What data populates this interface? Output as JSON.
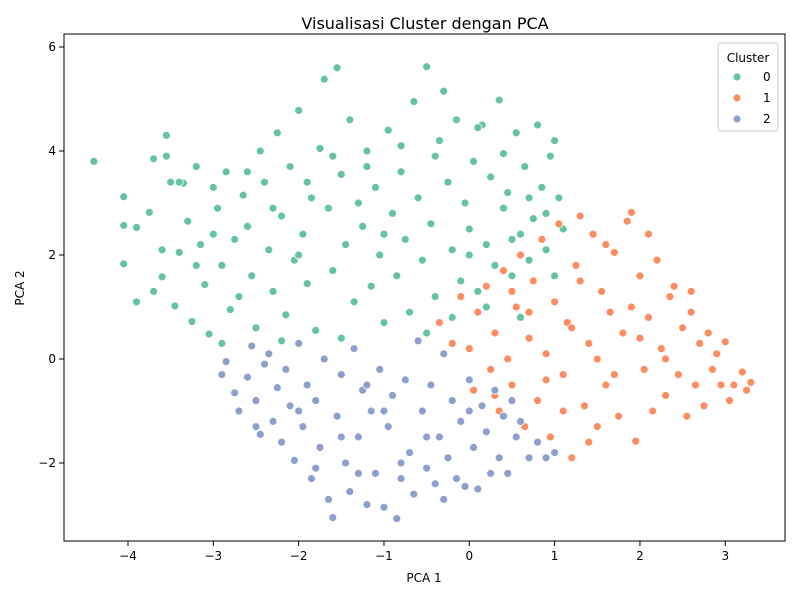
{
  "chart_data": {
    "type": "scatter",
    "title": "Visualisasi Cluster dengan PCA",
    "xlabel": "PCA 1",
    "ylabel": "PCA 2",
    "xlim": [
      -4.75,
      3.7
    ],
    "ylim": [
      -3.5,
      6.25
    ],
    "xticks": [
      -4,
      -3,
      -2,
      -1,
      0,
      1,
      2,
      3
    ],
    "yticks": [
      -2,
      0,
      2,
      4,
      6
    ],
    "xtick_labels": [
      "−4",
      "−3",
      "−2",
      "−1",
      "0",
      "1",
      "2",
      "3"
    ],
    "ytick_labels": [
      "−2",
      "0",
      "2",
      "4",
      "6"
    ],
    "grid": false,
    "legend": {
      "title": "Cluster",
      "placement": "top-right",
      "entries": [
        {
          "label": "0",
          "color": "#66c2a5"
        },
        {
          "label": "1",
          "color": "#fc8d62"
        },
        {
          "label": "2",
          "color": "#8da0cb"
        }
      ]
    },
    "series": [
      {
        "name": "0",
        "color": "#66c2a5",
        "description_of_extent": "x roughly -4.4 to 1.1, y roughly 0.2 to 5.6",
        "points": [
          [
            -4.4,
            3.8
          ],
          [
            -4.05,
            3.12
          ],
          [
            -4.05,
            2.57
          ],
          [
            -4.05,
            1.83
          ],
          [
            -3.9,
            2.53
          ],
          [
            -3.9,
            1.1
          ],
          [
            -3.75,
            2.82
          ],
          [
            -3.7,
            3.85
          ],
          [
            -3.7,
            1.3
          ],
          [
            -3.6,
            1.58
          ],
          [
            -3.55,
            4.3
          ],
          [
            -3.55,
            3.9
          ],
          [
            -3.5,
            3.4
          ],
          [
            -3.45,
            1.02
          ],
          [
            -3.4,
            2.05
          ],
          [
            -3.35,
            3.38
          ],
          [
            -3.3,
            2.65
          ],
          [
            -3.25,
            0.72
          ],
          [
            -3.2,
            3.7
          ],
          [
            -3.15,
            2.2
          ],
          [
            -3.1,
            1.43
          ],
          [
            -3.05,
            0.48
          ],
          [
            -3.0,
            3.3
          ],
          [
            -2.95,
            2.9
          ],
          [
            -2.9,
            1.8
          ],
          [
            -2.85,
            3.6
          ],
          [
            -2.8,
            0.95
          ],
          [
            -2.75,
            2.3
          ],
          [
            -2.7,
            1.2
          ],
          [
            -2.65,
            3.15
          ],
          [
            -2.6,
            2.55
          ],
          [
            -2.55,
            1.6
          ],
          [
            -2.5,
            0.6
          ],
          [
            -2.45,
            4.0
          ],
          [
            -2.4,
            3.4
          ],
          [
            -2.35,
            2.1
          ],
          [
            -2.3,
            1.3
          ],
          [
            -2.25,
            4.35
          ],
          [
            -2.2,
            2.75
          ],
          [
            -2.15,
            0.85
          ],
          [
            -2.1,
            3.7
          ],
          [
            -2.05,
            1.9
          ],
          [
            -2.0,
            4.78
          ],
          [
            -1.95,
            2.4
          ],
          [
            -1.9,
            1.45
          ],
          [
            -1.85,
            3.1
          ],
          [
            -1.8,
            0.55
          ],
          [
            -1.75,
            4.05
          ],
          [
            -1.7,
            5.38
          ],
          [
            -1.65,
            2.9
          ],
          [
            -1.6,
            1.7
          ],
          [
            -1.55,
            5.6
          ],
          [
            -1.5,
            3.55
          ],
          [
            -1.45,
            2.2
          ],
          [
            -1.4,
            4.6
          ],
          [
            -1.35,
            1.1
          ],
          [
            -1.3,
            3.0
          ],
          [
            -1.25,
            2.55
          ],
          [
            -1.2,
            4.0
          ],
          [
            -1.15,
            1.4
          ],
          [
            -1.1,
            3.3
          ],
          [
            -1.05,
            2.0
          ],
          [
            -1.0,
            0.7
          ],
          [
            -0.95,
            4.4
          ],
          [
            -0.9,
            2.8
          ],
          [
            -0.85,
            1.6
          ],
          [
            -0.8,
            3.6
          ],
          [
            -0.75,
            2.3
          ],
          [
            -0.7,
            0.9
          ],
          [
            -0.65,
            4.95
          ],
          [
            -0.6,
            3.1
          ],
          [
            -0.55,
            1.9
          ],
          [
            -0.5,
            5.62
          ],
          [
            -0.45,
            2.6
          ],
          [
            -0.4,
            1.2
          ],
          [
            -0.35,
            4.2
          ],
          [
            -0.3,
            5.15
          ],
          [
            -0.25,
            3.4
          ],
          [
            -0.2,
            2.1
          ],
          [
            -0.15,
            4.6
          ],
          [
            -0.1,
            1.5
          ],
          [
            -0.05,
            3.0
          ],
          [
            0.0,
            2.5
          ],
          [
            0.05,
            3.8
          ],
          [
            0.1,
            1.3
          ],
          [
            0.15,
            4.5
          ],
          [
            0.2,
            2.2
          ],
          [
            0.25,
            3.5
          ],
          [
            0.3,
            1.8
          ],
          [
            0.35,
            4.98
          ],
          [
            0.4,
            2.9
          ],
          [
            0.45,
            3.2
          ],
          [
            0.5,
            1.6
          ],
          [
            0.55,
            4.35
          ],
          [
            0.6,
            2.4
          ],
          [
            0.65,
            3.7
          ],
          [
            0.7,
            1.9
          ],
          [
            0.75,
            2.7
          ],
          [
            0.8,
            4.5
          ],
          [
            0.85,
            3.3
          ],
          [
            0.9,
            2.1
          ],
          [
            0.95,
            3.9
          ],
          [
            1.0,
            4.2
          ],
          [
            1.05,
            3.1
          ],
          [
            1.1,
            2.5
          ],
          [
            1.0,
            1.6
          ],
          [
            0.6,
            0.8
          ],
          [
            0.2,
            1.0
          ],
          [
            -0.2,
            0.8
          ],
          [
            -0.5,
            0.5
          ],
          [
            -1.5,
            0.4
          ],
          [
            -2.2,
            0.35
          ],
          [
            -2.9,
            0.3
          ],
          [
            -3.2,
            1.8
          ],
          [
            -3.0,
            2.4
          ],
          [
            -2.6,
            3.6
          ],
          [
            -2.3,
            2.9
          ],
          [
            -1.9,
            3.4
          ],
          [
            -1.6,
            3.9
          ],
          [
            -1.2,
            3.7
          ],
          [
            -0.8,
            4.1
          ],
          [
            -0.4,
            3.9
          ],
          [
            0.1,
            4.45
          ],
          [
            0.4,
            3.95
          ],
          [
            0.7,
            3.1
          ],
          [
            0.9,
            2.8
          ],
          [
            -3.4,
            3.4
          ],
          [
            -3.6,
            2.1
          ],
          [
            -2.0,
            2.0
          ],
          [
            -1.0,
            2.4
          ],
          [
            0.0,
            2.0
          ],
          [
            0.5,
            2.3
          ]
        ]
      },
      {
        "name": "1",
        "color": "#fc8d62",
        "description_of_extent": "x roughly -0.4 to 3.3, y roughly -1.9 to 2.8",
        "points": [
          [
            -0.35,
            0.7
          ],
          [
            -0.2,
            0.3
          ],
          [
            -0.1,
            1.2
          ],
          [
            0.0,
            0.2
          ],
          [
            0.05,
            -0.6
          ],
          [
            0.1,
            0.9
          ],
          [
            0.2,
            1.4
          ],
          [
            0.25,
            -0.2
          ],
          [
            0.3,
            0.5
          ],
          [
            0.35,
            -1.0
          ],
          [
            0.4,
            1.7
          ],
          [
            0.45,
            0.0
          ],
          [
            0.5,
            -0.5
          ],
          [
            0.55,
            1.0
          ],
          [
            0.6,
            2.0
          ],
          [
            0.65,
            -1.3
          ],
          [
            0.7,
            0.4
          ],
          [
            0.75,
            1.5
          ],
          [
            0.8,
            -0.8
          ],
          [
            0.85,
            2.3
          ],
          [
            0.9,
            0.1
          ],
          [
            0.95,
            -1.5
          ],
          [
            1.0,
            1.1
          ],
          [
            1.05,
            2.6
          ],
          [
            1.1,
            -0.3
          ],
          [
            1.15,
            0.7
          ],
          [
            1.2,
            -1.9
          ],
          [
            1.25,
            1.8
          ],
          [
            1.3,
            2.75
          ],
          [
            1.35,
            -0.9
          ],
          [
            1.4,
            0.3
          ],
          [
            1.45,
            2.4
          ],
          [
            1.5,
            -1.3
          ],
          [
            1.55,
            1.3
          ],
          [
            1.6,
            -0.5
          ],
          [
            1.65,
            0.9
          ],
          [
            1.7,
            2.05
          ],
          [
            1.75,
            -1.1
          ],
          [
            1.8,
            0.5
          ],
          [
            1.85,
            2.65
          ],
          [
            1.9,
            2.82
          ],
          [
            1.95,
            -1.58
          ],
          [
            2.0,
            1.6
          ],
          [
            2.05,
            -0.2
          ],
          [
            2.1,
            0.8
          ],
          [
            2.15,
            -1.0
          ],
          [
            2.2,
            1.9
          ],
          [
            2.25,
            0.2
          ],
          [
            2.3,
            -0.7
          ],
          [
            2.35,
            1.2
          ],
          [
            2.4,
            1.4
          ],
          [
            2.45,
            -0.3
          ],
          [
            2.5,
            0.6
          ],
          [
            2.55,
            -1.1
          ],
          [
            2.6,
            0.9
          ],
          [
            2.65,
            -0.5
          ],
          [
            2.7,
            0.3
          ],
          [
            2.75,
            -0.9
          ],
          [
            2.8,
            0.5
          ],
          [
            2.85,
            -0.2
          ],
          [
            2.9,
            0.1
          ],
          [
            2.95,
            -0.5
          ],
          [
            3.0,
            0.33
          ],
          [
            3.05,
            -0.8
          ],
          [
            3.1,
            -0.5
          ],
          [
            3.2,
            -0.25
          ],
          [
            3.25,
            -0.6
          ],
          [
            3.3,
            -0.45
          ],
          [
            1.5,
            0.0
          ],
          [
            1.2,
            0.6
          ],
          [
            0.9,
            -0.4
          ],
          [
            2.0,
            0.4
          ],
          [
            1.7,
            -0.3
          ],
          [
            1.3,
            1.5
          ],
          [
            0.7,
            0.9
          ],
          [
            2.3,
            0.0
          ],
          [
            1.1,
            -1.0
          ],
          [
            1.9,
            1.0
          ],
          [
            1.6,
            2.2
          ],
          [
            0.5,
            1.3
          ],
          [
            1.4,
            -1.6
          ],
          [
            2.1,
            2.4
          ],
          [
            2.6,
            1.3
          ],
          [
            0.3,
            -0.7
          ]
        ]
      },
      {
        "name": "2",
        "color": "#8da0cb",
        "description_of_extent": "x roughly -2.9 to 1.0, y roughly -3.1 to 0.6",
        "points": [
          [
            -2.9,
            -0.3
          ],
          [
            -2.85,
            -0.05
          ],
          [
            -2.75,
            -0.65
          ],
          [
            -2.7,
            -1.0
          ],
          [
            -2.6,
            -0.35
          ],
          [
            -2.55,
            0.25
          ],
          [
            -2.5,
            -0.8
          ],
          [
            -2.45,
            -1.45
          ],
          [
            -2.4,
            -0.1
          ],
          [
            -2.35,
            0.1
          ],
          [
            -2.3,
            -1.2
          ],
          [
            -2.25,
            -0.55
          ],
          [
            -2.2,
            -1.6
          ],
          [
            -2.15,
            -0.2
          ],
          [
            -2.1,
            -0.9
          ],
          [
            -2.05,
            -1.95
          ],
          [
            -2.0,
            0.3
          ],
          [
            -1.95,
            -1.3
          ],
          [
            -1.9,
            -0.5
          ],
          [
            -1.85,
            -2.3
          ],
          [
            -1.8,
            -0.8
          ],
          [
            -1.75,
            -1.7
          ],
          [
            -1.7,
            0.0
          ],
          [
            -1.65,
            -2.7
          ],
          [
            -1.6,
            -3.05
          ],
          [
            -1.55,
            -1.1
          ],
          [
            -1.5,
            -0.3
          ],
          [
            -1.45,
            -2.0
          ],
          [
            -1.4,
            -2.55
          ],
          [
            -1.35,
            0.2
          ],
          [
            -1.3,
            -1.5
          ],
          [
            -1.25,
            -0.6
          ],
          [
            -1.2,
            -2.8
          ],
          [
            -1.15,
            -1.0
          ],
          [
            -1.1,
            -2.2
          ],
          [
            -1.05,
            -0.2
          ],
          [
            -1.0,
            -2.85
          ],
          [
            -0.95,
            -1.3
          ],
          [
            -0.9,
            -0.7
          ],
          [
            -0.85,
            -3.07
          ],
          [
            -0.8,
            -2.3
          ],
          [
            -0.75,
            -0.4
          ],
          [
            -0.7,
            -1.8
          ],
          [
            -0.65,
            -2.6
          ],
          [
            -0.6,
            0.35
          ],
          [
            -0.55,
            -1.0
          ],
          [
            -0.5,
            -2.1
          ],
          [
            -0.45,
            -0.5
          ],
          [
            -0.4,
            -2.4
          ],
          [
            -0.35,
            -1.5
          ],
          [
            -0.3,
            0.1
          ],
          [
            -0.25,
            -1.9
          ],
          [
            -0.2,
            -0.8
          ],
          [
            -0.15,
            -2.3
          ],
          [
            -0.1,
            -1.2
          ],
          [
            -0.05,
            -2.45
          ],
          [
            0.0,
            -0.4
          ],
          [
            0.05,
            -1.7
          ],
          [
            0.1,
            -2.5
          ],
          [
            0.15,
            -0.9
          ],
          [
            0.2,
            -1.4
          ],
          [
            0.25,
            -2.2
          ],
          [
            0.3,
            -0.6
          ],
          [
            0.35,
            -1.9
          ],
          [
            0.4,
            -1.1
          ],
          [
            0.45,
            -2.2
          ],
          [
            0.5,
            -0.8
          ],
          [
            0.55,
            -1.5
          ],
          [
            0.6,
            -1.2
          ],
          [
            0.7,
            -1.9
          ],
          [
            0.8,
            -1.6
          ],
          [
            0.9,
            -1.9
          ],
          [
            1.0,
            -1.8
          ],
          [
            -1.0,
            -1.0
          ],
          [
            -1.5,
            -1.5
          ],
          [
            -0.5,
            -1.5
          ],
          [
            -2.0,
            -1.0
          ],
          [
            0.0,
            -1.0
          ],
          [
            -1.2,
            -0.5
          ],
          [
            -0.8,
            -2.0
          ],
          [
            -1.8,
            -2.1
          ],
          [
            -0.3,
            -2.7
          ],
          [
            -2.5,
            -1.3
          ],
          [
            -1.3,
            -2.2
          ]
        ]
      }
    ]
  }
}
